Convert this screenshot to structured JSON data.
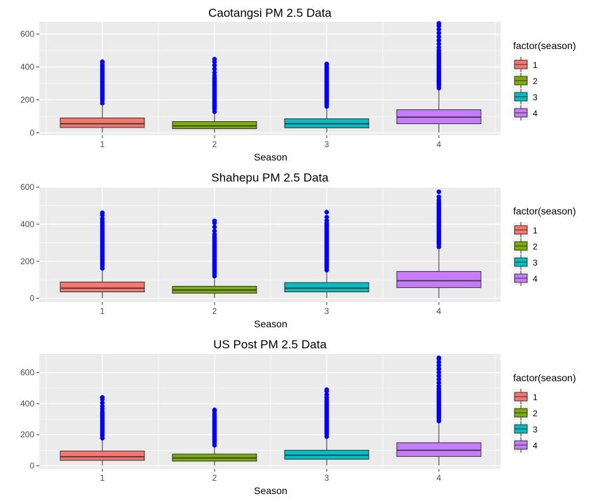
{
  "colors": {
    "panel_bg": "#EBEBEB",
    "grid": "#FFFFFF",
    "outlier": "#0000FF",
    "season_fills": [
      "#F8766D",
      "#7CAE00",
      "#00BFC4",
      "#C77CFF"
    ]
  },
  "chart_data": [
    {
      "type": "boxplot",
      "title": "Caotangsi PM 2.5 Data",
      "xlabel": "Season",
      "ylabel": "",
      "categories": [
        "1",
        "2",
        "3",
        "4"
      ],
      "ylim": [
        -15,
        675
      ],
      "yticks": [
        0,
        200,
        400,
        600
      ],
      "grid": true,
      "legend": {
        "title": "factor(season)",
        "position": "right",
        "entries": [
          "1",
          "2",
          "3",
          "4"
        ]
      },
      "boxes": [
        {
          "category": "1",
          "lower_whisker": 2,
          "q1": 32,
          "median": 55,
          "q3": 90,
          "upper_whisker": 178,
          "outliers_from": 180,
          "outliers_to": 430,
          "max_outlier": 432
        },
        {
          "category": "2",
          "lower_whisker": 2,
          "q1": 25,
          "median": 42,
          "q3": 68,
          "upper_whisker": 125,
          "outliers_from": 128,
          "outliers_to": 348,
          "max_outlier": 448
        },
        {
          "category": "3",
          "lower_whisker": 2,
          "q1": 30,
          "median": 55,
          "q3": 85,
          "upper_whisker": 158,
          "outliers_from": 160,
          "outliers_to": 418,
          "max_outlier": 418
        },
        {
          "category": "4",
          "lower_whisker": 2,
          "q1": 55,
          "median": 95,
          "q3": 140,
          "upper_whisker": 270,
          "outliers_from": 272,
          "outliers_to": 500,
          "max_outlier": 665
        }
      ]
    },
    {
      "type": "boxplot",
      "title": "Shahepu PM 2.5 Data",
      "xlabel": "Season",
      "ylabel": "",
      "categories": [
        "1",
        "2",
        "3",
        "4"
      ],
      "ylim": [
        -20,
        600
      ],
      "yticks": [
        0,
        200,
        400,
        600
      ],
      "grid": true,
      "legend": {
        "title": "factor(season)",
        "position": "right",
        "entries": [
          "1",
          "2",
          "3",
          "4"
        ]
      },
      "boxes": [
        {
          "category": "1",
          "lower_whisker": 2,
          "q1": 35,
          "median": 55,
          "q3": 88,
          "upper_whisker": 160,
          "outliers_from": 162,
          "outliers_to": 430,
          "max_outlier": 462
        },
        {
          "category": "2",
          "lower_whisker": 2,
          "q1": 28,
          "median": 45,
          "q3": 65,
          "upper_whisker": 118,
          "outliers_from": 120,
          "outliers_to": 345,
          "max_outlier": 418
        },
        {
          "category": "3",
          "lower_whisker": 2,
          "q1": 35,
          "median": 55,
          "q3": 85,
          "upper_whisker": 150,
          "outliers_from": 152,
          "outliers_to": 420,
          "max_outlier": 465
        },
        {
          "category": "4",
          "lower_whisker": 2,
          "q1": 58,
          "median": 95,
          "q3": 145,
          "upper_whisker": 275,
          "outliers_from": 278,
          "outliers_to": 530,
          "max_outlier": 575
        }
      ]
    },
    {
      "type": "boxplot",
      "title": "US Post PM 2.5 Data",
      "xlabel": "Season",
      "ylabel": "",
      "categories": [
        "1",
        "2",
        "3",
        "4"
      ],
      "ylim": [
        -20,
        720
      ],
      "yticks": [
        0,
        200,
        400,
        600
      ],
      "grid": true,
      "legend": {
        "title": "factor(season)",
        "position": "right",
        "entries": [
          "1",
          "2",
          "3",
          "4"
        ]
      },
      "boxes": [
        {
          "category": "1",
          "lower_whisker": 2,
          "q1": 35,
          "median": 58,
          "q3": 95,
          "upper_whisker": 175,
          "outliers_from": 178,
          "outliers_to": 365,
          "max_outlier": 440
        },
        {
          "category": "2",
          "lower_whisker": 2,
          "q1": 30,
          "median": 50,
          "q3": 75,
          "upper_whisker": 130,
          "outliers_from": 132,
          "outliers_to": 335,
          "max_outlier": 360
        },
        {
          "category": "3",
          "lower_whisker": 2,
          "q1": 42,
          "median": 68,
          "q3": 100,
          "upper_whisker": 185,
          "outliers_from": 188,
          "outliers_to": 440,
          "max_outlier": 490
        },
        {
          "category": "4",
          "lower_whisker": 2,
          "q1": 60,
          "median": 100,
          "q3": 148,
          "upper_whisker": 285,
          "outliers_from": 288,
          "outliers_to": 495,
          "max_outlier": 695
        }
      ]
    }
  ]
}
